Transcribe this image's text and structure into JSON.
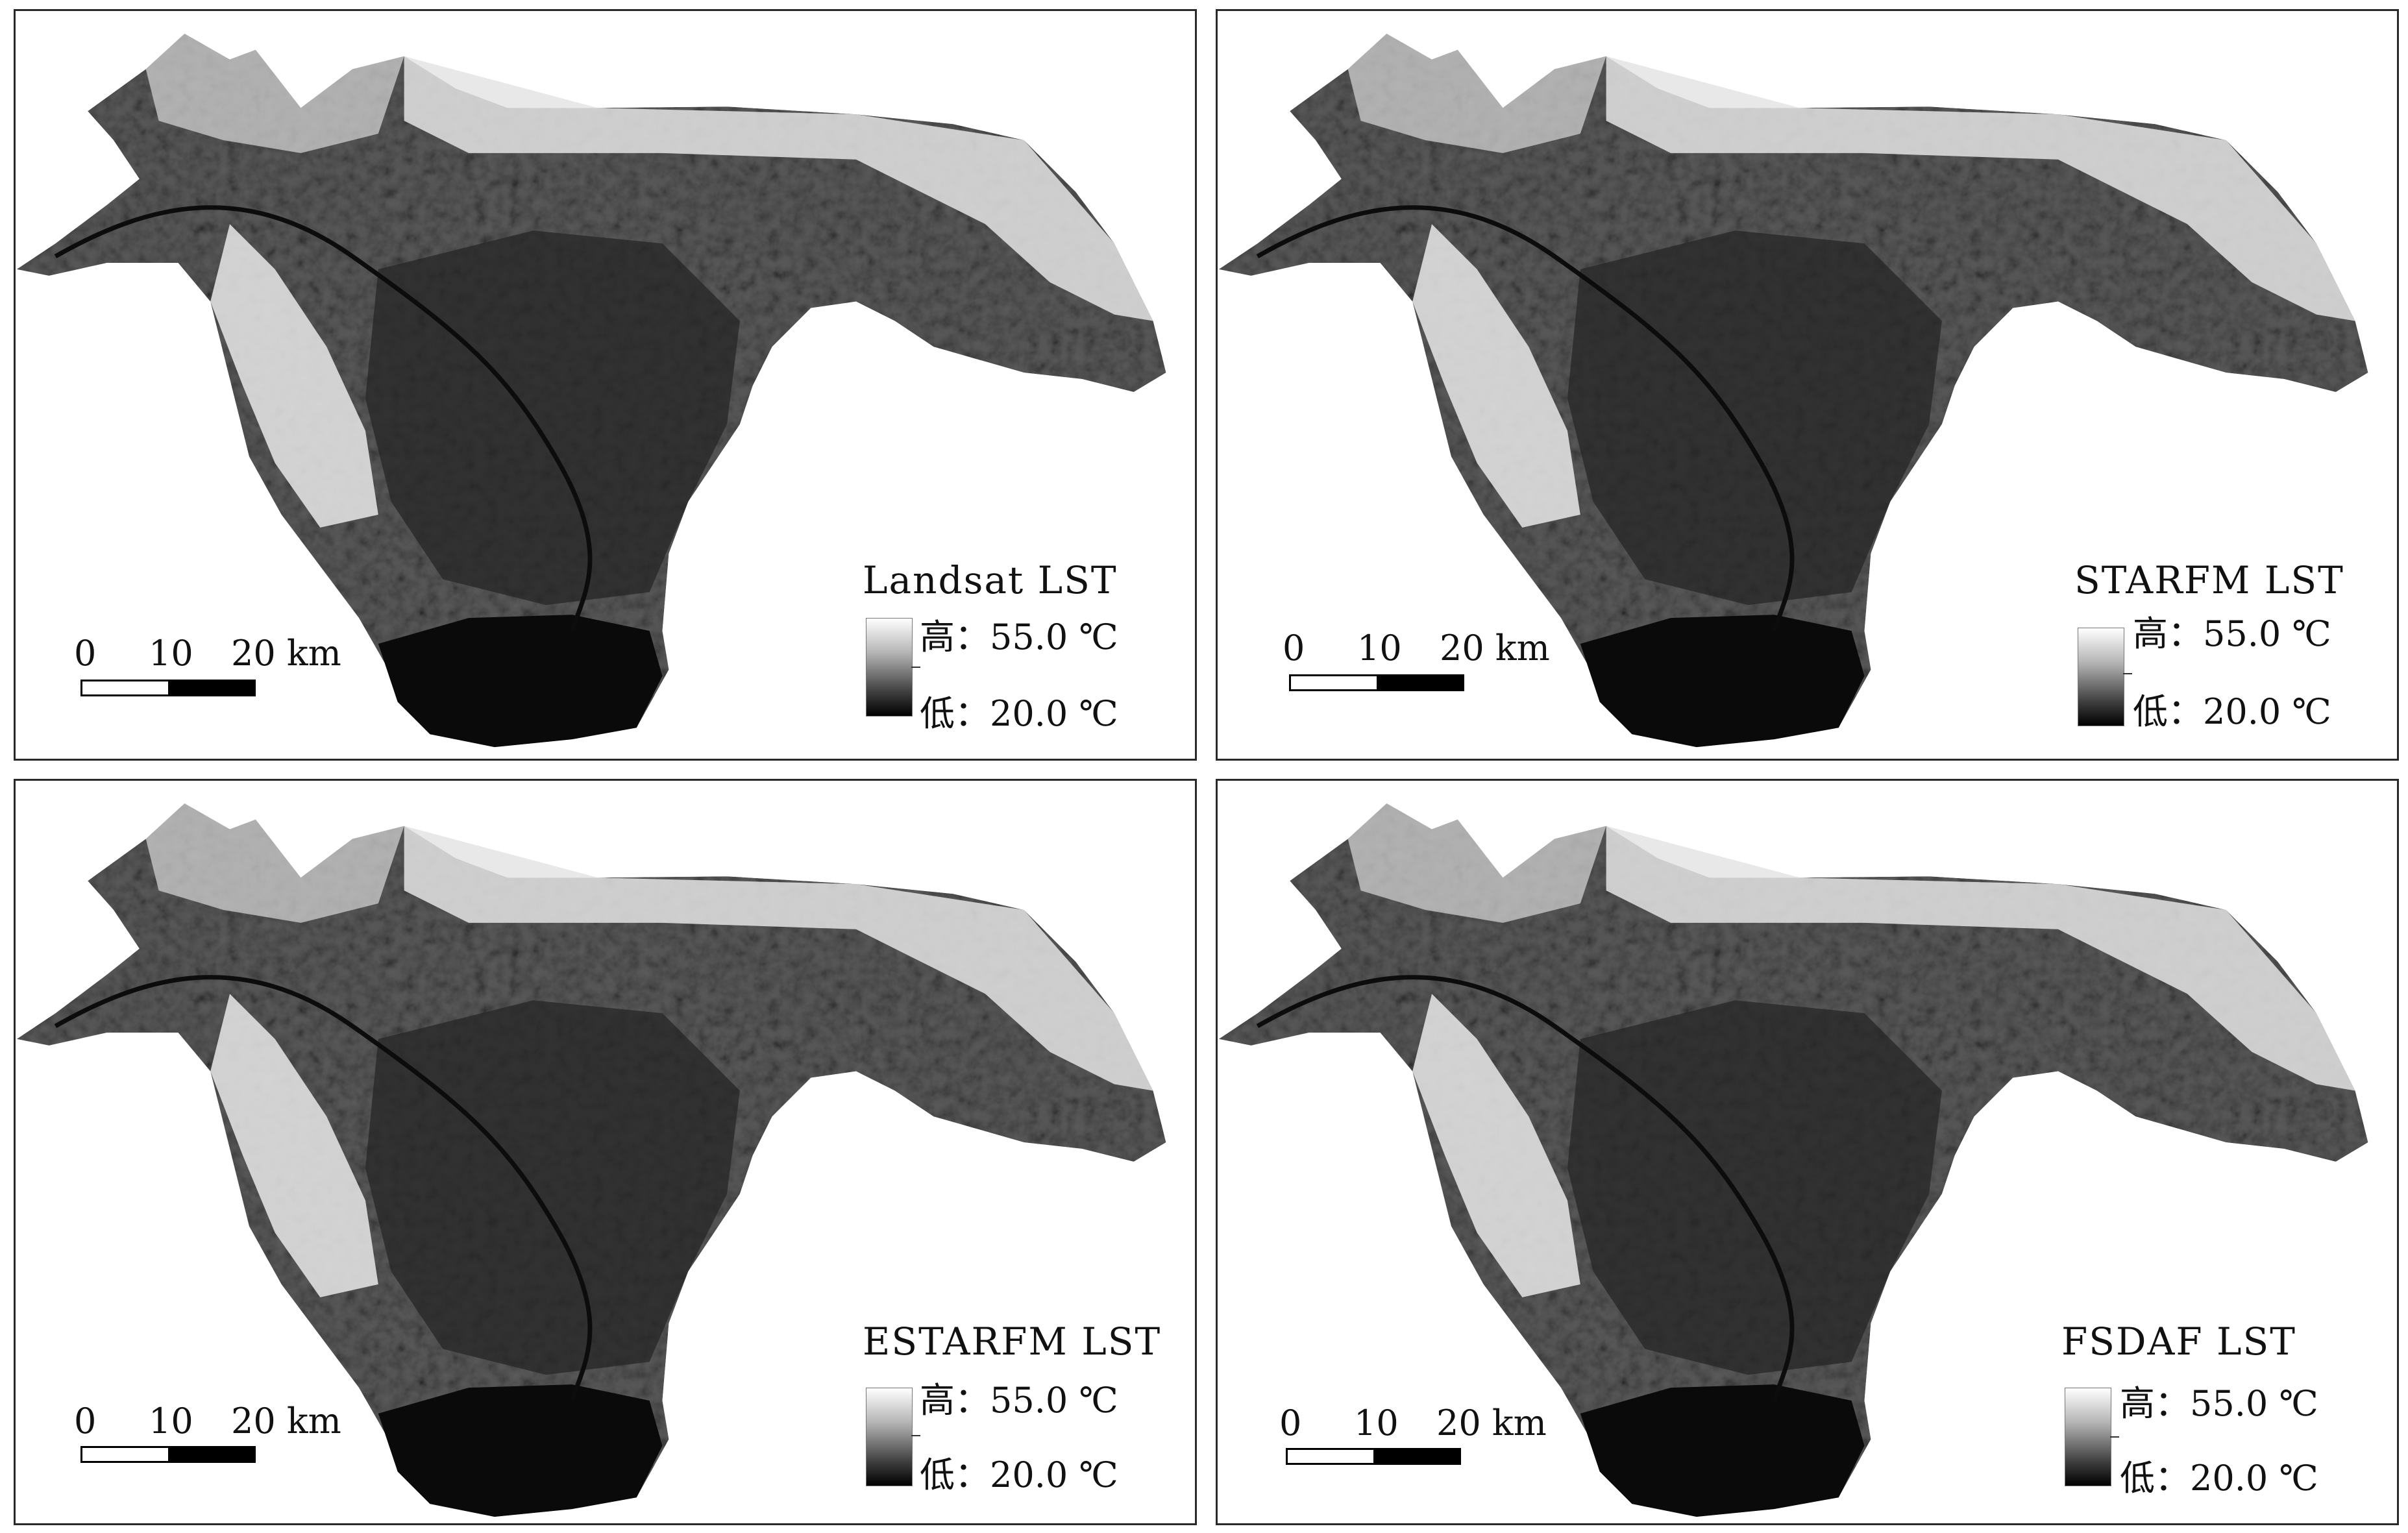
{
  "panels": [
    {
      "id": "landsat",
      "title": "Landsat  LST"
    },
    {
      "id": "starfm",
      "title": "STARFM  LST"
    },
    {
      "id": "estarfm",
      "title": "ESTARFM  LST"
    },
    {
      "id": "fsdaf",
      "title": "FSDAF  LST"
    }
  ],
  "legend": {
    "high_label": "高：",
    "high_value": "55.0 ℃",
    "low_label": "低：",
    "low_value": "20.0 ℃",
    "colors": {
      "high": "#ffffff",
      "low": "#000000"
    }
  },
  "scale": {
    "ticks": [
      "0",
      "10",
      "20 km"
    ]
  }
}
